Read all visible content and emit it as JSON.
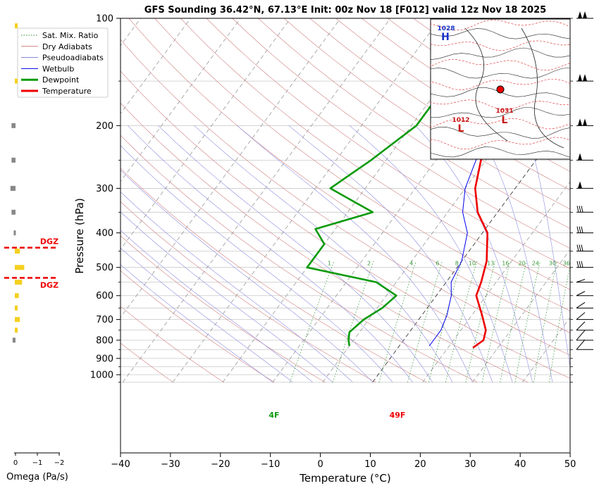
{
  "title": "GFS Sounding 36.42°N, 67.13°E Init: 00z Nov 18 [F012] valid 12z Nov 18 2025",
  "legend": {
    "entries": [
      {
        "label": "Sat. Mix. Ratio",
        "color": "#2e8b2e",
        "style": "dotted"
      },
      {
        "label": "Dry Adiabats",
        "color": "#d08080",
        "style": "solid"
      },
      {
        "label": "Pseudoadiabats",
        "color": "#8080d0",
        "style": "solid"
      },
      {
        "label": "Wetbulb",
        "color": "#0000ee",
        "style": "solid"
      },
      {
        "label": "Dewpoint",
        "color": "#0a9a0a",
        "style": "thick"
      },
      {
        "label": "Temperature",
        "color": "#ee0000",
        "style": "thick"
      }
    ]
  },
  "chart_data": {
    "type": "line",
    "x_axis": {
      "label": "Temperature (°C)",
      "range": [
        -40,
        50
      ],
      "ticks": [
        "−40",
        "−30",
        "−20",
        "−10",
        "0",
        "10",
        "20",
        "30",
        "40",
        "50"
      ]
    },
    "y_axis": {
      "label": "Pressure (hPa)",
      "scale": "log",
      "range": [
        1050,
        100
      ],
      "ticks": [
        "100",
        "200",
        "300",
        "400",
        "500",
        "600",
        "700",
        "800",
        "900",
        "1000"
      ]
    },
    "skew": "skew-T",
    "series": [
      {
        "name": "Temperature",
        "color": "#ee0000",
        "points": [
          [
            -3,
            100
          ],
          [
            -6,
            150
          ],
          [
            -12,
            200
          ],
          [
            -11,
            250
          ],
          [
            -8,
            300
          ],
          [
            -4,
            350
          ],
          [
            1,
            400
          ],
          [
            5,
            480
          ],
          [
            7,
            550
          ],
          [
            8,
            600
          ],
          [
            12,
            680
          ],
          [
            15,
            750
          ],
          [
            16,
            800
          ],
          [
            15,
            840
          ]
        ]
      },
      {
        "name": "Dewpoint",
        "color": "#0a9a0a",
        "points": [
          [
            -20,
            100
          ],
          [
            -29,
            150
          ],
          [
            -29,
            200
          ],
          [
            -33,
            250
          ],
          [
            -37,
            300
          ],
          [
            -25,
            350
          ],
          [
            -34,
            390
          ],
          [
            -30,
            430
          ],
          [
            -30,
            500
          ],
          [
            -14,
            550
          ],
          [
            -8,
            600
          ],
          [
            -9,
            650
          ],
          [
            -11,
            700
          ],
          [
            -12,
            760
          ],
          [
            -11,
            800
          ],
          [
            -10,
            830
          ]
        ]
      },
      {
        "name": "Wetbulb",
        "color": "#0000ee",
        "points": [
          [
            -3,
            100
          ],
          [
            -6,
            150
          ],
          [
            -12,
            200
          ],
          [
            -12,
            250
          ],
          [
            -10,
            300
          ],
          [
            -7,
            350
          ],
          [
            -3,
            400
          ],
          [
            0,
            480
          ],
          [
            1,
            550
          ],
          [
            3,
            600
          ],
          [
            5,
            680
          ],
          [
            6,
            750
          ],
          [
            6,
            800
          ],
          [
            6,
            830
          ]
        ]
      }
    ],
    "mixing_ratio_labels": [
      "1",
      "2",
      "4",
      "6",
      "8",
      "10",
      "13",
      "16",
      "20",
      "24",
      "30",
      "36"
    ],
    "surface_labels": {
      "temperature": "49F",
      "dewpoint": "4F"
    },
    "grid": true
  },
  "omega": {
    "axis_label": "Omega (Pa/s)",
    "ticks": [
      "0",
      "−1",
      "−2"
    ],
    "dgz_label": "DGZ",
    "bars": [
      {
        "p": 105,
        "omega": -0.1,
        "color": "#f5d020"
      },
      {
        "p": 150,
        "omega": -0.1,
        "color": "#f5d020"
      },
      {
        "p": 200,
        "omega": 0.15,
        "color": "#888888"
      },
      {
        "p": 250,
        "omega": 0.15,
        "color": "#888888"
      },
      {
        "p": 300,
        "omega": 0.2,
        "color": "#888888"
      },
      {
        "p": 350,
        "omega": 0.15,
        "color": "#888888"
      },
      {
        "p": 400,
        "omega": 0.05,
        "color": "#888888"
      },
      {
        "p": 450,
        "omega": -0.2,
        "color": "#f5d020"
      },
      {
        "p": 500,
        "omega": -0.4,
        "color": "#f5d020"
      },
      {
        "p": 550,
        "omega": -0.3,
        "color": "#f5d020"
      },
      {
        "p": 600,
        "omega": -0.15,
        "color": "#f5d020"
      },
      {
        "p": 650,
        "omega": -0.1,
        "color": "#f5d020"
      },
      {
        "p": 700,
        "omega": -0.2,
        "color": "#f5d020"
      },
      {
        "p": 750,
        "omega": -0.1,
        "color": "#f5d020"
      },
      {
        "p": 800,
        "omega": 0.1,
        "color": "#888888"
      }
    ]
  },
  "map_inset": {
    "high_label": "H",
    "high_value": "1028",
    "low_labels": [
      {
        "label": "L",
        "value": "1012"
      },
      {
        "label": "L",
        "value": "1031"
      }
    ]
  },
  "barbs_levels": [
    100,
    150,
    200,
    250,
    300,
    350,
    400,
    450,
    500,
    550,
    600,
    650,
    700,
    750,
    800,
    850
  ]
}
